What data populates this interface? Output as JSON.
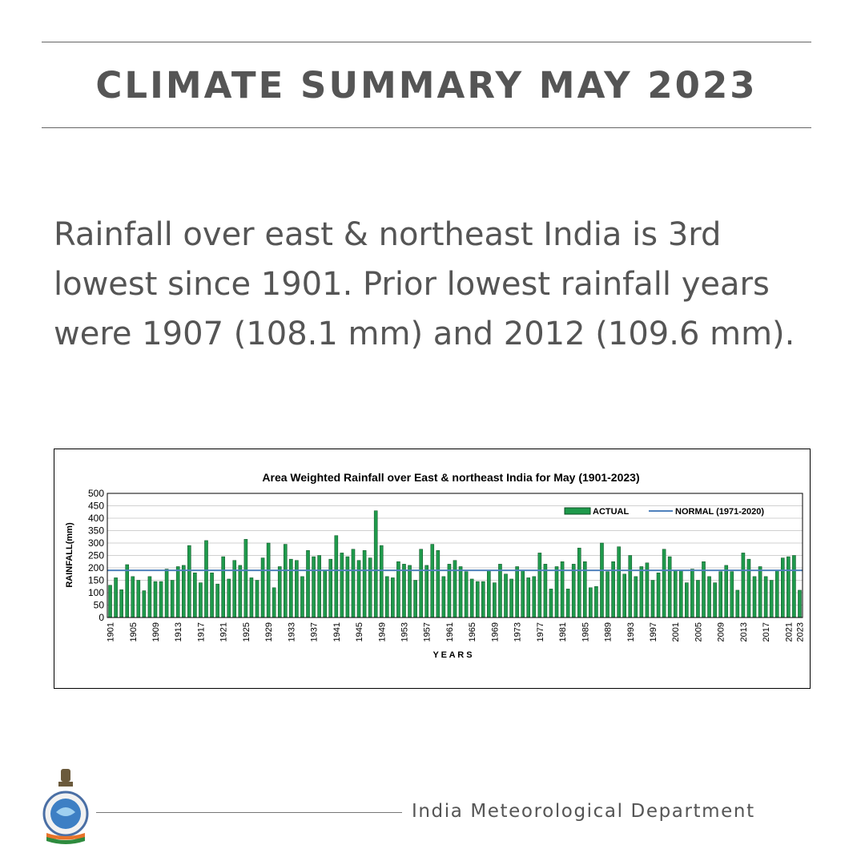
{
  "header": {
    "title": "CLIMATE SUMMARY MAY 2023"
  },
  "summary_text": "Rainfall over east & northeast India is 3rd lowest since 1901. Prior lowest rainfall years were 1907 (108.1 mm) and 2012 (109.6 mm).",
  "footer": {
    "organization": "India Meteorological Department",
    "logo_icon": "imd-emblem-icon"
  },
  "colors": {
    "text": "#555555",
    "bar": "#1f9a4c",
    "bar_outline": "#0d4f23",
    "normal_line": "#4f81bd"
  },
  "chart_data": {
    "type": "bar",
    "title": "Area Weighted Rainfall  over East & northeast India  for  May (1901-2023)",
    "xlabel": "Y E A R S",
    "ylabel": "RAINFALL(mm)",
    "ylim": [
      0,
      500
    ],
    "yticks": [
      0,
      50,
      100,
      150,
      200,
      250,
      300,
      350,
      400,
      450,
      500
    ],
    "xtick_labels": [
      "1901",
      "1905",
      "1909",
      "1913",
      "1917",
      "1921",
      "1925",
      "1929",
      "1933",
      "1937",
      "1941",
      "1945",
      "1949",
      "1953",
      "1957",
      "1961",
      "1965",
      "1969",
      "1973",
      "1977",
      "1981",
      "1985",
      "1989",
      "1993",
      "1997",
      "2001",
      "2005",
      "2009",
      "2013",
      "2017",
      "2021",
      "2023"
    ],
    "grid": true,
    "legend_position": "top-right",
    "series": [
      {
        "name": "ACTUAL",
        "x_start": 1901,
        "values": [
          130,
          160,
          112,
          213,
          165,
          150,
          108,
          165,
          145,
          145,
          195,
          150,
          205,
          210,
          290,
          180,
          140,
          310,
          180,
          135,
          245,
          155,
          230,
          210,
          315,
          160,
          150,
          240,
          300,
          120,
          205,
          295,
          235,
          230,
          165,
          270,
          245,
          250,
          190,
          235,
          330,
          260,
          245,
          275,
          230,
          270,
          240,
          430,
          290,
          165,
          160,
          225,
          215,
          210,
          150,
          275,
          210,
          295,
          270,
          165,
          215,
          230,
          205,
          185,
          155,
          145,
          145,
          190,
          140,
          215,
          175,
          155,
          205,
          190,
          160,
          165,
          260,
          215,
          115,
          205,
          225,
          115,
          215,
          280,
          225,
          120,
          125,
          300,
          185,
          225,
          285,
          175,
          250,
          165,
          205,
          220,
          150,
          180,
          275,
          245,
          190,
          190,
          140,
          195,
          150,
          225,
          165,
          140,
          185,
          210,
          185,
          110,
          260,
          235,
          165,
          205,
          165,
          150,
          190,
          240,
          245,
          250,
          110
        ]
      },
      {
        "name": "NORMAL (1971-2020)",
        "value": 190
      }
    ]
  }
}
